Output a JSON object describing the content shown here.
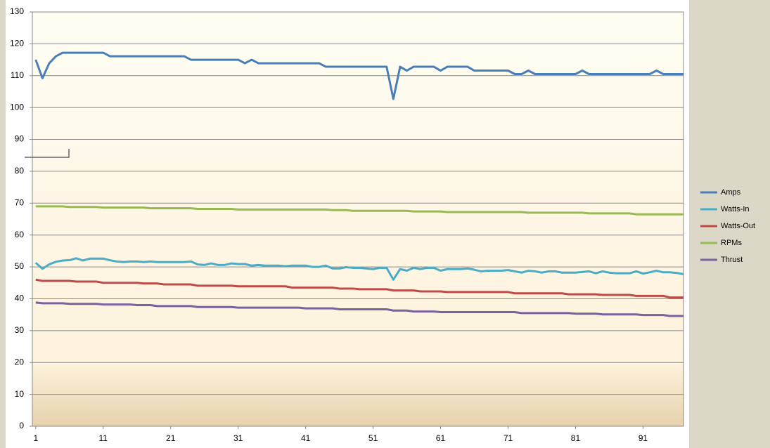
{
  "chart_data": {
    "type": "line",
    "x": [
      1,
      2,
      3,
      4,
      5,
      6,
      7,
      8,
      9,
      10,
      11,
      12,
      13,
      14,
      15,
      16,
      17,
      18,
      19,
      20,
      21,
      22,
      23,
      24,
      25,
      26,
      27,
      28,
      29,
      30,
      31,
      32,
      33,
      34,
      35,
      36,
      37,
      38,
      39,
      40,
      41,
      42,
      43,
      44,
      45,
      46,
      47,
      48,
      49,
      50,
      51,
      52,
      53,
      54,
      55,
      56,
      57,
      58,
      59,
      60,
      61,
      62,
      63,
      64,
      65,
      66,
      67,
      68,
      69,
      70,
      71,
      72,
      73,
      74,
      75,
      76,
      77,
      78,
      79,
      80,
      81,
      82,
      83,
      84,
      85,
      86,
      87,
      88,
      89,
      90,
      91,
      92,
      93,
      94,
      95,
      96,
      97
    ],
    "xlim": [
      0.5,
      97
    ],
    "xticks": [
      1,
      11,
      21,
      31,
      41,
      51,
      61,
      71,
      81,
      91
    ],
    "ylim": [
      0,
      130
    ],
    "yticks": [
      0,
      10,
      20,
      30,
      40,
      50,
      60,
      70,
      80,
      90,
      100,
      110,
      120,
      130
    ],
    "grid": true,
    "legend": "right",
    "series": [
      {
        "name": "Amps",
        "color": "#4a7ebb",
        "values": [
          115,
          109.2,
          113.9,
          116.1,
          117.2,
          117.2,
          117.2,
          117.2,
          117.2,
          117.2,
          117.2,
          116.1,
          116.1,
          116.1,
          116.1,
          116.1,
          116.1,
          116.1,
          116.1,
          116.1,
          116.1,
          116.1,
          116.1,
          115,
          115,
          115,
          115,
          115,
          115,
          115,
          115,
          113.9,
          115,
          113.9,
          113.9,
          113.9,
          113.9,
          113.9,
          113.9,
          113.9,
          113.9,
          113.9,
          113.9,
          112.8,
          112.8,
          112.8,
          112.8,
          112.8,
          112.8,
          112.8,
          112.8,
          112.8,
          112.8,
          102.7,
          112.8,
          111.6,
          112.8,
          112.8,
          112.8,
          112.8,
          111.6,
          112.8,
          112.8,
          112.8,
          112.8,
          111.6,
          111.6,
          111.6,
          111.6,
          111.6,
          111.6,
          110.5,
          110.5,
          111.6,
          110.5,
          110.5,
          110.5,
          110.5,
          110.5,
          110.5,
          110.5,
          111.6,
          110.5,
          110.5,
          110.5,
          110.5,
          110.5,
          110.5,
          110.5,
          110.5,
          110.5,
          110.5,
          111.6,
          110.5,
          110.5,
          110.5,
          110.5
        ]
      },
      {
        "name": "Watts-In",
        "color": "#4bacc6",
        "values": [
          51.3,
          49.4,
          50.8,
          51.6,
          52,
          52.1,
          52.7,
          52,
          52.6,
          52.6,
          52.6,
          52.1,
          51.7,
          51.5,
          51.7,
          51.7,
          51.5,
          51.7,
          51.5,
          51.5,
          51.5,
          51.5,
          51.5,
          51.7,
          50.8,
          50.6,
          51.1,
          50.6,
          50.6,
          51.1,
          50.9,
          50.9,
          50.4,
          50.6,
          50.4,
          50.4,
          50.4,
          50.2,
          50.4,
          50.4,
          50.4,
          50,
          50,
          50.4,
          49.5,
          49.5,
          49.9,
          49.7,
          49.7,
          49.5,
          49.3,
          49.7,
          49.7,
          46,
          49.3,
          48.8,
          49.7,
          49.3,
          49.7,
          49.7,
          48.8,
          49.3,
          49.3,
          49.3,
          49.5,
          49.1,
          48.6,
          48.8,
          48.8,
          48.8,
          49,
          48.6,
          48.2,
          48.8,
          48.6,
          48.2,
          48.6,
          48.6,
          48.2,
          48.2,
          48.2,
          48.4,
          48.6,
          48,
          48.6,
          48.2,
          48,
          48,
          48,
          48.6,
          47.9,
          48.3,
          48.8,
          48.3,
          48.3,
          48.1,
          47.7
        ]
      },
      {
        "name": "Watts-Out",
        "color": "#be4b48",
        "values": [
          46,
          45.6,
          45.6,
          45.6,
          45.6,
          45.6,
          45.4,
          45.4,
          45.4,
          45.4,
          45,
          45,
          45,
          45,
          45,
          45,
          44.8,
          44.8,
          44.8,
          44.5,
          44.5,
          44.5,
          44.5,
          44.5,
          44.1,
          44.1,
          44.1,
          44.1,
          44.1,
          44.1,
          43.9,
          43.9,
          43.9,
          43.9,
          43.9,
          43.9,
          43.9,
          43.9,
          43.5,
          43.5,
          43.5,
          43.5,
          43.5,
          43.5,
          43.5,
          43.2,
          43.2,
          43.2,
          43,
          43,
          43,
          43,
          43,
          42.6,
          42.6,
          42.6,
          42.6,
          42.3,
          42.3,
          42.3,
          42.3,
          42.1,
          42.1,
          42.1,
          42.1,
          42.1,
          42.1,
          42.1,
          42.1,
          42.1,
          42.1,
          41.7,
          41.7,
          41.7,
          41.7,
          41.7,
          41.7,
          41.7,
          41.7,
          41.4,
          41.4,
          41.4,
          41.4,
          41.4,
          41.2,
          41.2,
          41.2,
          41.2,
          41.2,
          40.9,
          40.9,
          40.9,
          40.9,
          40.9,
          40.4,
          40.4,
          40.4
        ]
      },
      {
        "name": "RPMs",
        "color": "#98b954",
        "values": [
          69,
          69,
          69,
          69,
          69,
          68.8,
          68.8,
          68.8,
          68.8,
          68.8,
          68.6,
          68.6,
          68.6,
          68.6,
          68.6,
          68.6,
          68.6,
          68.4,
          68.4,
          68.4,
          68.4,
          68.4,
          68.4,
          68.4,
          68.2,
          68.2,
          68.2,
          68.2,
          68.2,
          68.2,
          68,
          68,
          68,
          68,
          68,
          68,
          68,
          68,
          68,
          68,
          68,
          68,
          68,
          68,
          67.8,
          67.8,
          67.8,
          67.6,
          67.6,
          67.6,
          67.6,
          67.6,
          67.6,
          67.6,
          67.6,
          67.6,
          67.4,
          67.4,
          67.4,
          67.4,
          67.4,
          67.2,
          67.2,
          67.2,
          67.2,
          67.2,
          67.2,
          67.2,
          67.2,
          67.2,
          67.2,
          67.2,
          67.2,
          67,
          67,
          67,
          67,
          67,
          67,
          67,
          67,
          67,
          66.8,
          66.8,
          66.8,
          66.8,
          66.8,
          66.8,
          66.8,
          66.5,
          66.5,
          66.5,
          66.5,
          66.5,
          66.5,
          66.5,
          66.5
        ]
      },
      {
        "name": "Thrust",
        "color": "#7d60a0",
        "values": [
          38.8,
          38.6,
          38.6,
          38.6,
          38.6,
          38.4,
          38.4,
          38.4,
          38.4,
          38.4,
          38.2,
          38.2,
          38.2,
          38.2,
          38.2,
          38,
          38,
          38,
          37.7,
          37.7,
          37.7,
          37.7,
          37.7,
          37.7,
          37.4,
          37.4,
          37.4,
          37.4,
          37.4,
          37.4,
          37.2,
          37.2,
          37.2,
          37.2,
          37.2,
          37.2,
          37.2,
          37.2,
          37.2,
          37.2,
          37,
          37,
          37,
          37,
          37,
          36.7,
          36.7,
          36.7,
          36.7,
          36.7,
          36.7,
          36.7,
          36.7,
          36.3,
          36.3,
          36.3,
          36,
          36,
          36,
          36,
          35.8,
          35.8,
          35.8,
          35.8,
          35.8,
          35.8,
          35.8,
          35.8,
          35.8,
          35.8,
          35.8,
          35.8,
          35.5,
          35.5,
          35.5,
          35.5,
          35.5,
          35.5,
          35.5,
          35.5,
          35.3,
          35.3,
          35.3,
          35.3,
          35.1,
          35.1,
          35.1,
          35.1,
          35.1,
          35.1,
          34.9,
          34.9,
          34.9,
          34.9,
          34.6,
          34.6,
          34.6
        ]
      }
    ]
  }
}
